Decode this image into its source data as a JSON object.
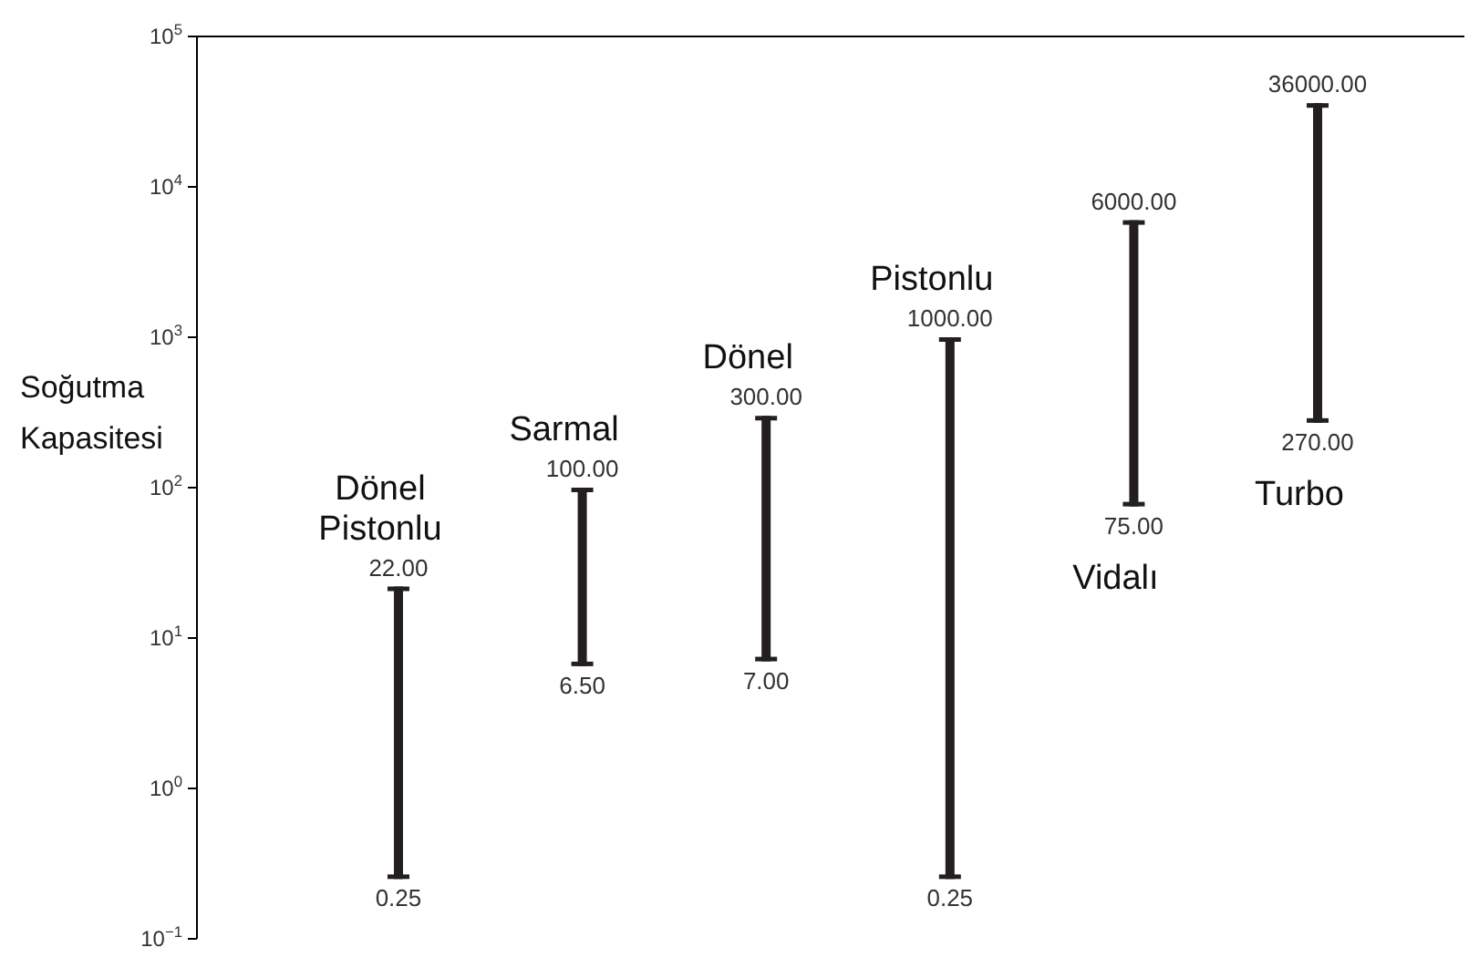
{
  "chart_data": {
    "type": "bar",
    "ylabel": "Soğutma Kapasitesi",
    "categories": [
      "Dönel Pistonlu",
      "Sarmal",
      "Dönel",
      "Pistonlu",
      "Vidalı",
      "Turbo"
    ],
    "base": [
      0.25,
      6.5,
      7,
      0.25,
      75,
      270
    ],
    "values": [
      21.75,
      93.5,
      293,
      999.75,
      5925,
      35730
    ],
    "color": "#231f20",
    "log": true,
    "ylim": [
      0.1,
      100000
    ],
    "yticks": [
      {
        "value": 0.1,
        "label": "10$^{−1}$"
      },
      {
        "value": 1,
        "label": "10$^{0}$"
      },
      {
        "value": 10,
        "label": "10$^{1}$"
      },
      {
        "value": 100,
        "label": "10$^{2}$"
      },
      {
        "value": 1000,
        "label": "10$^{3}$"
      },
      {
        "value": 10000,
        "label": "10$^{4}$"
      },
      {
        "value": 100000,
        "label": "10$^{5}$"
      }
    ],
    "tick_labels": "y",
    "grid": false,
    "annotations": [
      "22.00",
      "0.25",
      "100.00",
      "6.50",
      "300.00",
      "7.00",
      "1000.00",
      "0.25",
      "6000.00",
      "75.00",
      "36000.00",
      "270.00"
    ]
  }
}
